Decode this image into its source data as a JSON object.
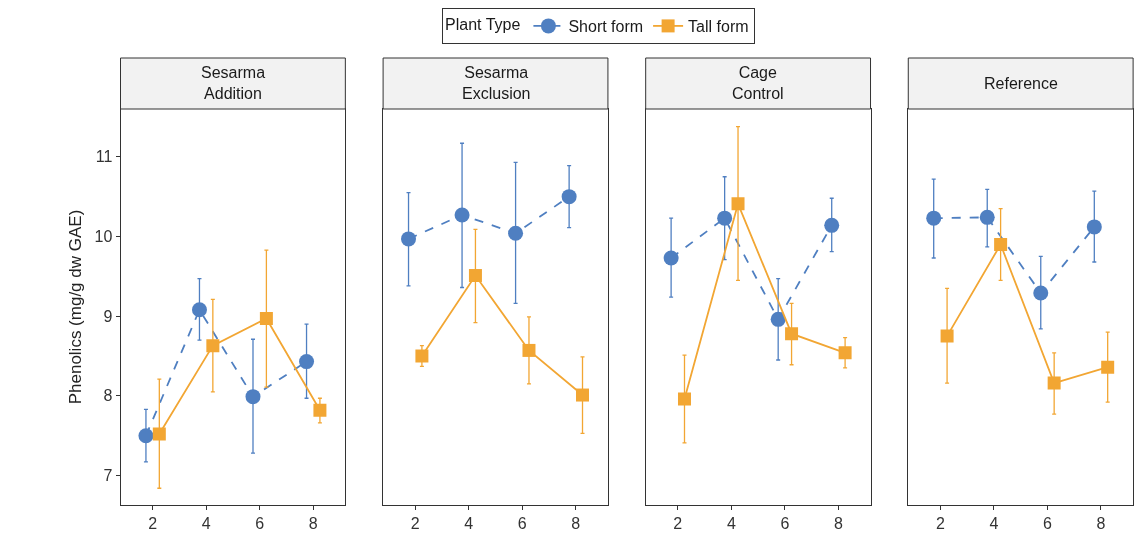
{
  "chart_data": [
    {
      "type": "line",
      "title": "Sesarma\nAddition",
      "ylabel": "Phenolics (mg/g dw GAE)",
      "xlim": [
        0.8,
        9.2
      ],
      "xticks": [
        2,
        4,
        6,
        8
      ],
      "ylim": [
        6.63,
        11.6
      ],
      "yticks": [
        7,
        8,
        9,
        10,
        11
      ],
      "legend": "top",
      "legend_title": "Plant Type",
      "series": [
        {
          "name": "Short form",
          "color": "#4f7fc1",
          "marker": "circle",
          "line_style": "dashed",
          "x": [
            1.75,
            3.75,
            5.75,
            7.75
          ],
          "values": [
            7.5,
            9.08,
            7.99,
            8.43
          ],
          "errors": [
            [
              7.17,
              7.83
            ],
            [
              8.7,
              9.47
            ],
            [
              7.28,
              8.71
            ],
            [
              7.97,
              8.9
            ]
          ]
        },
        {
          "name": "Tall form",
          "color": "#f2a633",
          "marker": "square",
          "line_style": "solid",
          "x": [
            2.25,
            4.25,
            6.25,
            8.25
          ],
          "values": [
            7.52,
            8.63,
            8.97,
            7.82
          ],
          "errors": [
            [
              6.84,
              8.21
            ],
            [
              8.05,
              9.21
            ],
            [
              8.11,
              9.83
            ],
            [
              7.66,
              7.97
            ]
          ]
        }
      ]
    },
    {
      "type": "line",
      "title": "Sesarma\nExclusion",
      "xlim": [
        0.8,
        9.2
      ],
      "xticks": [
        2,
        4,
        6,
        8
      ],
      "ylim": [
        6.63,
        11.6
      ],
      "yticks": [
        7,
        8,
        9,
        10,
        11
      ],
      "tick_labels": "x",
      "series": [
        {
          "color": "#4f7fc1",
          "marker": "circle",
          "line_style": "dashed",
          "x": [
            1.75,
            3.75,
            5.75,
            7.75
          ],
          "values": [
            9.97,
            10.27,
            10.04,
            10.5
          ],
          "errors": [
            [
              9.38,
              10.55
            ],
            [
              9.36,
              11.17
            ],
            [
              9.16,
              10.93
            ],
            [
              10.11,
              10.89
            ]
          ]
        },
        {
          "color": "#f2a633",
          "marker": "square",
          "line_style": "solid",
          "x": [
            2.25,
            4.25,
            6.25,
            8.25
          ],
          "values": [
            8.5,
            9.51,
            8.57,
            8.01
          ],
          "errors": [
            [
              8.37,
              8.63
            ],
            [
              8.92,
              10.09
            ],
            [
              8.15,
              8.99
            ],
            [
              7.53,
              8.49
            ]
          ]
        }
      ]
    },
    {
      "type": "line",
      "title": "Cage\nControl",
      "xlim": [
        0.8,
        9.2
      ],
      "xticks": [
        2,
        4,
        6,
        8
      ],
      "ylim": [
        6.63,
        11.6
      ],
      "yticks": [
        7,
        8,
        9,
        10,
        11
      ],
      "tick_labels": "x",
      "series": [
        {
          "color": "#4f7fc1",
          "marker": "circle",
          "line_style": "dashed",
          "x": [
            1.75,
            3.75,
            5.75,
            7.75
          ],
          "values": [
            9.73,
            10.23,
            8.96,
            10.14
          ],
          "errors": [
            [
              9.24,
              10.23
            ],
            [
              9.71,
              10.75
            ],
            [
              8.45,
              9.47
            ],
            [
              9.81,
              10.48
            ]
          ]
        },
        {
          "color": "#f2a633",
          "marker": "square",
          "line_style": "solid",
          "x": [
            2.25,
            4.25,
            6.25,
            8.25
          ],
          "values": [
            7.96,
            10.41,
            8.78,
            8.54
          ],
          "errors": [
            [
              7.41,
              8.51
            ],
            [
              9.45,
              11.38
            ],
            [
              8.39,
              9.16
            ],
            [
              8.35,
              8.73
            ]
          ]
        }
      ]
    },
    {
      "type": "line",
      "title": "Reference",
      "xlim": [
        0.8,
        9.2
      ],
      "xticks": [
        2,
        4,
        6,
        8
      ],
      "ylim": [
        6.63,
        11.6
      ],
      "yticks": [
        7,
        8,
        9,
        10,
        11
      ],
      "tick_labels": "x",
      "series": [
        {
          "color": "#4f7fc1",
          "marker": "circle",
          "line_style": "dashed",
          "x": [
            1.75,
            3.75,
            5.75,
            7.75
          ],
          "values": [
            10.23,
            10.24,
            9.29,
            10.12
          ],
          "errors": [
            [
              9.73,
              10.72
            ],
            [
              9.87,
              10.59
            ],
            [
              8.84,
              9.75
            ],
            [
              9.68,
              10.57
            ]
          ]
        },
        {
          "color": "#f2a633",
          "marker": "square",
          "line_style": "solid",
          "x": [
            2.25,
            4.25,
            6.25,
            8.25
          ],
          "values": [
            8.75,
            9.9,
            8.16,
            8.36
          ],
          "errors": [
            [
              8.16,
              9.35
            ],
            [
              9.45,
              10.35
            ],
            [
              7.77,
              8.54
            ],
            [
              7.92,
              8.8
            ]
          ]
        }
      ]
    }
  ]
}
